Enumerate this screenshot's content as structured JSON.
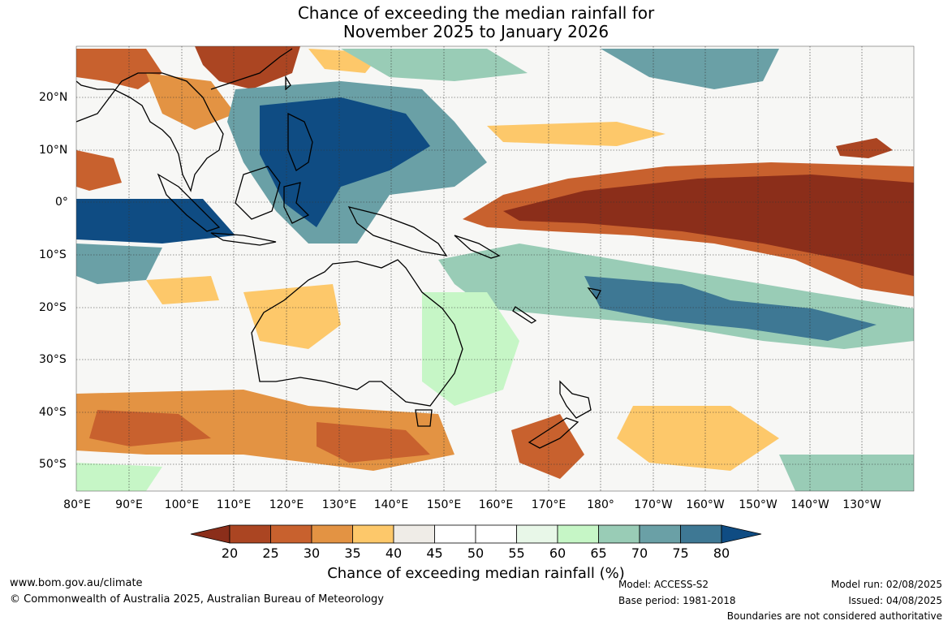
{
  "title_line1": "Chance of exceeding the median rainfall for",
  "title_line2": "November 2025 to January 2026",
  "lat_labels": [
    "20°N",
    "10°N",
    "0°",
    "10°S",
    "20°S",
    "30°S",
    "40°S",
    "50°S"
  ],
  "lon_labels": [
    "80°E",
    "90°E",
    "100°E",
    "110°E",
    "120°E",
    "130°E",
    "140°E",
    "150°E",
    "160°E",
    "170°E",
    "180°",
    "170°W",
    "160°W",
    "150°W",
    "140°W",
    "130°W"
  ],
  "colorbar": {
    "ticks": [
      "20",
      "25",
      "30",
      "35",
      "40",
      "45",
      "50",
      "55",
      "60",
      "65",
      "70",
      "75",
      "80"
    ],
    "colors": [
      "#8b2e1a",
      "#ab4522",
      "#c8612e",
      "#e39343",
      "#fdc86a",
      "#efece7",
      "#ffffff",
      "#ffffff",
      "#e8f7e8",
      "#c6f6c6",
      "#99ccb6",
      "#6aa0a6",
      "#3e7894",
      "#0f4c83"
    ],
    "label": "Chance of exceeding median rainfall (%)"
  },
  "footer": {
    "website": "www.bom.gov.au/climate",
    "copyright": "© Commonwealth of Australia 2025, Australian Bureau of Meteorology",
    "model": "Model: ACCESS-S2",
    "base_period": "Base period: 1981-2018",
    "model_run": "Model run: 02/08/2025",
    "issued": "Issued: 04/08/2025",
    "disclaimer": "Boundaries are not considered authoritative"
  }
}
